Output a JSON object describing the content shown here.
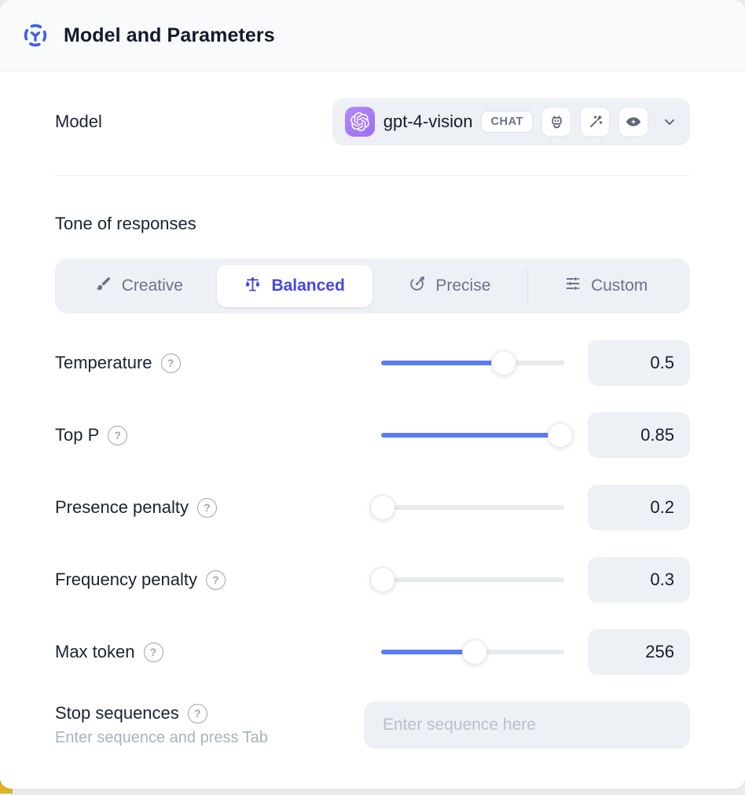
{
  "header": {
    "title": "Model and Parameters"
  },
  "model_row": {
    "label": "Model",
    "selected_model": "gpt-4-vision",
    "badge": "CHAT",
    "capability_icons": [
      "robot-icon",
      "magic-wand-icon",
      "vision-eye-icon"
    ]
  },
  "tone": {
    "label": "Tone of responses",
    "tabs": [
      {
        "label": "Creative",
        "icon": "paintbrush-icon",
        "selected": false
      },
      {
        "label": "Balanced",
        "icon": "scales-icon",
        "selected": true
      },
      {
        "label": "Precise",
        "icon": "target-arrow-icon",
        "selected": false
      },
      {
        "label": "Custom",
        "icon": "sliders-icon",
        "selected": false
      }
    ]
  },
  "parameters": [
    {
      "label": "Temperature",
      "value": "0.5",
      "fill_percent": 67
    },
    {
      "label": "Top P",
      "value": "0.85",
      "fill_percent": 98
    },
    {
      "label": "Presence penalty",
      "value": "0.2",
      "fill_percent": 1
    },
    {
      "label": "Frequency penalty",
      "value": "0.3",
      "fill_percent": 1
    },
    {
      "label": "Max token",
      "value": "256",
      "fill_percent": 51
    }
  ],
  "stop_sequences": {
    "label": "Stop sequences",
    "hint": "Enter sequence and press Tab",
    "placeholder": "Enter sequence here"
  },
  "icons": {
    "help_glyph": "?"
  },
  "colors": {
    "header_bg": "#f8fafc",
    "accent_blue": "#3b5ef0",
    "selected_tab_blue": "#4645e8",
    "slider_blue": "#5b7bf7",
    "logo_purple": "#a679f0",
    "field_gray": "#edf0f4",
    "corner_yellow": "#ddb321"
  }
}
